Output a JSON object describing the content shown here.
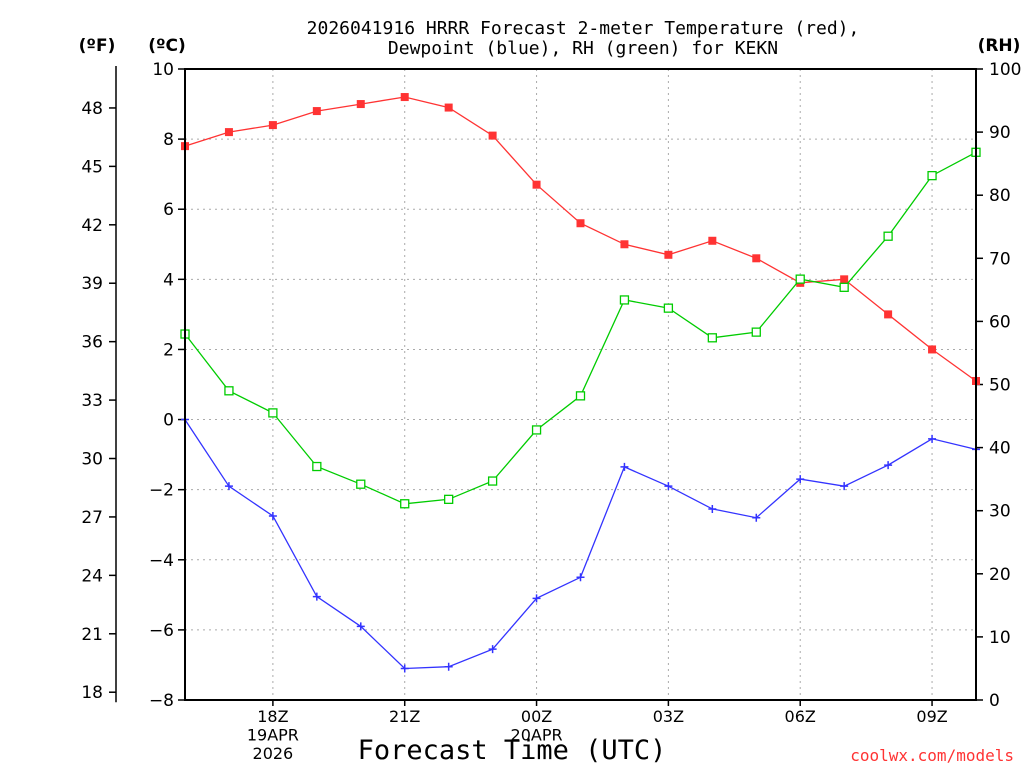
{
  "chart_data": {
    "type": "line",
    "title": [
      "2026041916 HRRR Forecast 2-meter Temperature (red),",
      "Dewpoint (blue), RH (green) for KEKN"
    ],
    "units": {
      "fahrenheit": "(ºF)",
      "celsius": "(ºC)",
      "rh": "(RH)"
    },
    "xlabel": "Forecast Time (UTC)",
    "credit": "coolwx.com/models",
    "x_hours": [
      16,
      17,
      18,
      19,
      20,
      21,
      22,
      23,
      24,
      25,
      26,
      27,
      28,
      29,
      30,
      31,
      32,
      33,
      34
    ],
    "x_ticks": [
      {
        "hour": 18,
        "lines": [
          "18Z",
          "19APR",
          "2026"
        ]
      },
      {
        "hour": 21,
        "lines": [
          "21Z"
        ]
      },
      {
        "hour": 24,
        "lines": [
          "00Z",
          "20APR"
        ]
      },
      {
        "hour": 27,
        "lines": [
          "03Z"
        ]
      },
      {
        "hour": 30,
        "lines": [
          "06Z"
        ]
      },
      {
        "hour": 33,
        "lines": [
          "09Z"
        ]
      }
    ],
    "y_celsius": {
      "min": -8,
      "max": 10,
      "ticks": [
        "-8",
        "-6",
        "-4",
        "-2",
        "0",
        "2",
        "4",
        "6",
        "8",
        "10"
      ]
    },
    "y_fahrenheit": {
      "ticks": [
        "18",
        "21",
        "24",
        "27",
        "30",
        "33",
        "36",
        "39",
        "42",
        "45",
        "48"
      ]
    },
    "y_rh": {
      "min": 0,
      "max": 100,
      "ticks": [
        "0",
        "10",
        "20",
        "30",
        "40",
        "50",
        "60",
        "70",
        "80",
        "90",
        "100"
      ]
    },
    "grid": true,
    "series": [
      {
        "name": "Temperature",
        "axis": "celsius",
        "color": "#ff3333",
        "marker": "filled-square",
        "values": [
          7.8,
          8.2,
          8.4,
          8.8,
          9.0,
          9.2,
          8.9,
          8.1,
          6.7,
          5.6,
          5.0,
          4.7,
          5.1,
          4.6,
          3.9,
          4.0,
          3.0,
          2.0,
          1.1
        ]
      },
      {
        "name": "Dewpoint",
        "axis": "celsius",
        "color": "#3333ff",
        "marker": "plus",
        "values": [
          0.0,
          -1.9,
          -2.75,
          -5.05,
          -5.9,
          -7.1,
          -7.05,
          -6.55,
          -5.1,
          -4.5,
          -1.35,
          -1.9,
          -2.55,
          -2.8,
          -1.7,
          -1.9,
          -1.3,
          -0.55,
          -0.85
        ]
      },
      {
        "name": "RH",
        "axis": "rh",
        "color": "#00cc00",
        "marker": "open-square",
        "values": [
          58,
          49,
          45.5,
          37,
          34.2,
          31.1,
          31.8,
          34.7,
          42.8,
          48.2,
          63.4,
          62.1,
          57.4,
          58.3,
          66.7,
          65.4,
          73.5,
          83.1,
          86.8
        ]
      }
    ]
  }
}
